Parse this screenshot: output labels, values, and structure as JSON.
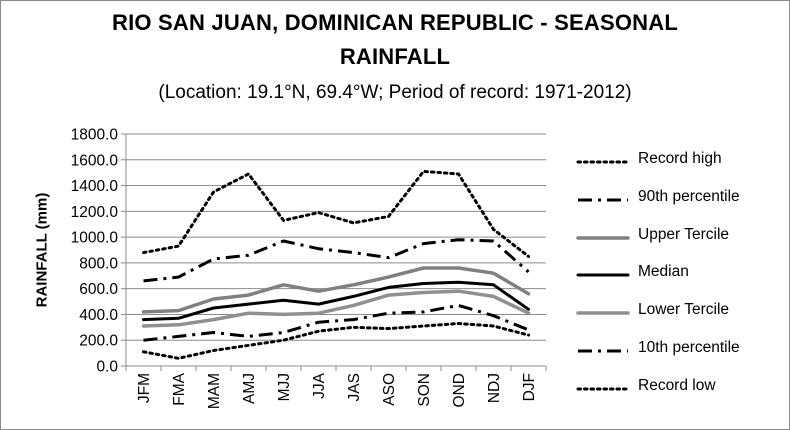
{
  "chart_data": {
    "type": "line",
    "title_line1": "RIO SAN JUAN, DOMINICAN REPUBLIC - SEASONAL",
    "title_line2": "RAINFALL",
    "subtitle": "(Location: 19.1°N, 69.4°W; Period of record: 1971-2012)",
    "ylabel": "RAINFALL (mm)",
    "xlabel": "",
    "ylim": [
      0,
      1800
    ],
    "yticks": [
      "0.0",
      "200.0",
      "400.0",
      "600.0",
      "800.0",
      "1000.0",
      "1200.0",
      "1400.0",
      "1600.0",
      "1800.0"
    ],
    "grid": true,
    "legend_position": "right",
    "categories": [
      "JFM",
      "FMA",
      "MAM",
      "AMJ",
      "MJJ",
      "JJA",
      "JAS",
      "ASO",
      "SON",
      "OND",
      "NDJ",
      "DJF"
    ],
    "series": [
      {
        "name": "Record high",
        "color": "#000000",
        "style": "dotted",
        "values": [
          880,
          930,
          1350,
          1490,
          1130,
          1190,
          1110,
          1160,
          1510,
          1490,
          1060,
          850
        ]
      },
      {
        "name": "90th percentile",
        "color": "#000000",
        "style": "dashdot",
        "values": [
          660,
          690,
          830,
          860,
          970,
          910,
          880,
          840,
          950,
          980,
          970,
          730
        ]
      },
      {
        "name": "Upper Tercile",
        "color": "#808080",
        "style": "solid",
        "values": [
          420,
          430,
          520,
          550,
          630,
          580,
          630,
          690,
          760,
          760,
          720,
          560
        ]
      },
      {
        "name": "Median",
        "color": "#000000",
        "style": "solid",
        "values": [
          360,
          370,
          450,
          480,
          510,
          480,
          540,
          610,
          640,
          650,
          630,
          440
        ]
      },
      {
        "name": "Lower Tercile",
        "color": "#909090",
        "style": "solid",
        "values": [
          310,
          320,
          360,
          410,
          400,
          410,
          470,
          550,
          570,
          580,
          540,
          410
        ]
      },
      {
        "name": "10th percentile",
        "color": "#000000",
        "style": "dashdot",
        "values": [
          200,
          230,
          260,
          230,
          260,
          340,
          360,
          410,
          420,
          470,
          390,
          280
        ]
      },
      {
        "name": "Record low",
        "color": "#000000",
        "style": "dotted",
        "values": [
          110,
          60,
          120,
          160,
          200,
          270,
          300,
          290,
          310,
          330,
          310,
          240
        ]
      }
    ]
  }
}
